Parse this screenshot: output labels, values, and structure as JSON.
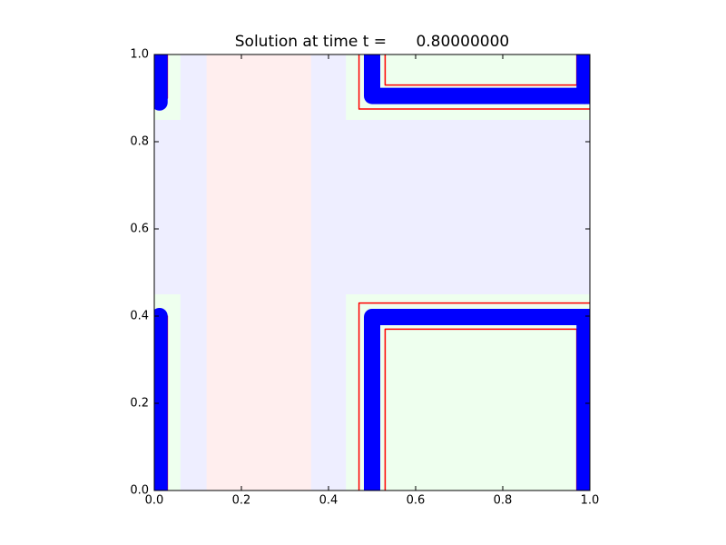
{
  "chart_data": {
    "type": "contour",
    "title": "Solution at time t =      0.80000000",
    "xlim": [
      0,
      1
    ],
    "ylim": [
      0,
      1
    ],
    "xticks": [
      {
        "value": 0,
        "label": "0.0"
      },
      {
        "value": 0.2,
        "label": "0.2"
      },
      {
        "value": 0.4,
        "label": "0.4"
      },
      {
        "value": 0.6,
        "label": "0.6"
      },
      {
        "value": 0.8,
        "label": "0.8"
      },
      {
        "value": 1,
        "label": "1.0"
      }
    ],
    "yticks": [
      {
        "value": 0,
        "label": "0.0"
      },
      {
        "value": 0.2,
        "label": "0.2"
      },
      {
        "value": 0.4,
        "label": "0.4"
      },
      {
        "value": 0.6,
        "label": "0.6"
      },
      {
        "value": 0.8,
        "label": "0.8"
      },
      {
        "value": 1,
        "label": "1.0"
      }
    ],
    "background": "#eeeeff",
    "regions": [
      {
        "x": [
          0.12,
          0.36
        ],
        "y": [
          0,
          1
        ],
        "color": "#ffeeee"
      },
      {
        "x": [
          0,
          0.06
        ],
        "y": [
          0,
          0.45
        ],
        "color": "#eeffee"
      },
      {
        "x": [
          0,
          0.06
        ],
        "y": [
          0.85,
          1
        ],
        "color": "#eeffee"
      },
      {
        "x": [
          0.44,
          1
        ],
        "y": [
          0,
          0.45
        ],
        "color": "#eeffee"
      },
      {
        "x": [
          0.44,
          1
        ],
        "y": [
          0.85,
          1
        ],
        "color": "#eeffee"
      }
    ],
    "bands": [
      {
        "x": [
          0.012,
          0.012
        ],
        "y": [
          1,
          0.89
        ],
        "color": "#0000ff"
      },
      {
        "x": [
          0.012,
          0.012
        ],
        "y": [
          0,
          0.4
        ],
        "color": "#0000ff"
      },
      {
        "x": [
          0.5,
          0.5,
          1
        ],
        "y": [
          1,
          0.905,
          0.905
        ],
        "color": "#0000ff"
      },
      {
        "x": [
          0.988,
          0.988
        ],
        "y": [
          1,
          0.905
        ],
        "color": "#0000ff"
      },
      {
        "x": [
          0.5,
          0.5,
          1
        ],
        "y": [
          0,
          0.398,
          0.398
        ],
        "color": "#0000ff"
      },
      {
        "x": [
          0.988,
          0.988
        ],
        "y": [
          0,
          0.398
        ],
        "color": "#0000ff"
      }
    ],
    "lines": [
      {
        "x": [
          0.47,
          0.47,
          1
        ],
        "y": [
          1,
          0.875,
          0.875
        ],
        "color": "#ff0000"
      },
      {
        "x": [
          0.53,
          0.53,
          0.97,
          0.97
        ],
        "y": [
          1,
          0.93,
          0.93,
          1
        ],
        "color": "#ff0000"
      },
      {
        "x": [
          0.47,
          0.47,
          1
        ],
        "y": [
          0,
          0.43,
          0.43
        ],
        "color": "#ff0000"
      },
      {
        "x": [
          0.53,
          0.53,
          0.97,
          0.97
        ],
        "y": [
          0,
          0.37,
          0.37,
          0
        ],
        "color": "#ff0000"
      },
      {
        "x": [
          0.03,
          0.03
        ],
        "y": [
          0,
          0.4
        ],
        "color": "#ff0000"
      },
      {
        "x": [
          0.03,
          0.03
        ],
        "y": [
          1,
          0.9
        ],
        "color": "#ff0000"
      }
    ]
  }
}
